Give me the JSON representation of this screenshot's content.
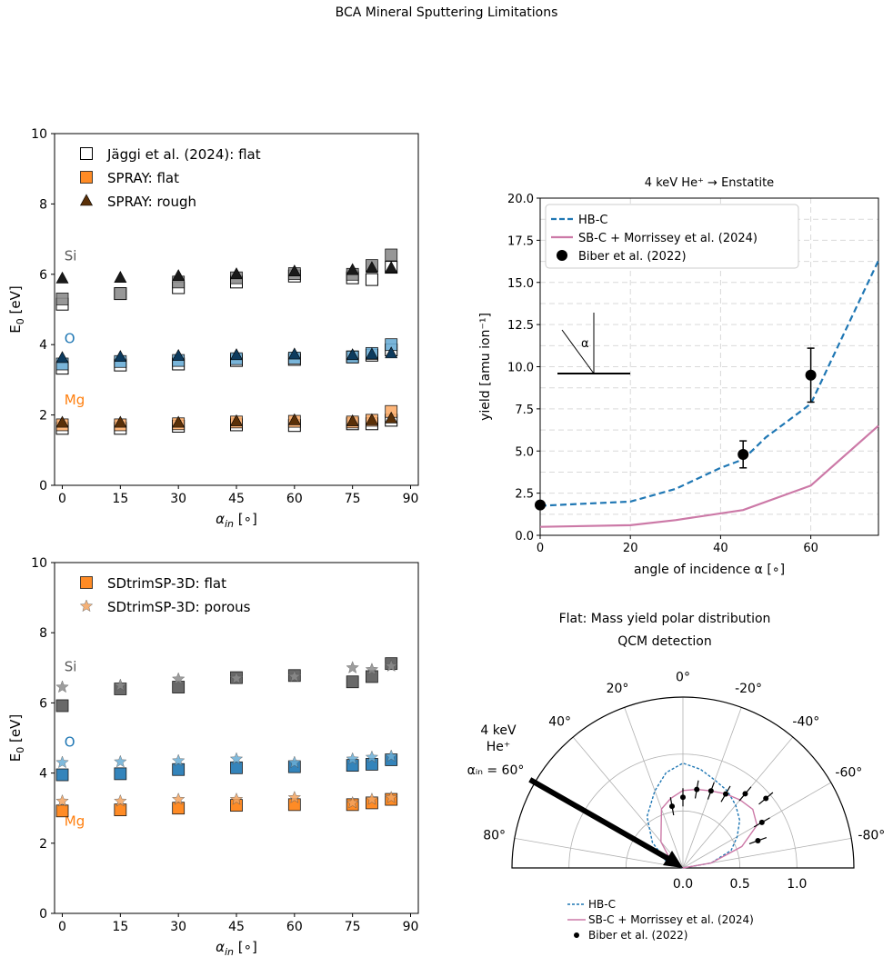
{
  "page_header": "BCA Mineral Sputtering Limitations",
  "colors": {
    "si": "#595959",
    "o": "#1f77b4",
    "mg": "#ff7f0e",
    "hbc": "#1f77b4",
    "sbc": "#cc79a7",
    "black": "#000000"
  },
  "chart_data": [
    {
      "type": "scatter",
      "panel": "top-left",
      "xlabel": "α_in [∘]",
      "ylabel": "E₀ [eV]",
      "xlim": [
        -2,
        92
      ],
      "ylim": [
        0,
        10
      ],
      "xticks": [
        0,
        15,
        30,
        45,
        60,
        75,
        90
      ],
      "yticks": [
        0,
        2,
        4,
        6,
        8,
        10
      ],
      "grid": false,
      "legend_position": "top-left",
      "legend": [
        "Jäggi et al. (2024): flat",
        "SPRAY: flat",
        "SPRAY: rough"
      ],
      "group_labels": [
        {
          "text": "Si",
          "x": 1,
          "y": 6.4,
          "color": "#595959"
        },
        {
          "text": "O",
          "x": 1,
          "y": 4.05,
          "color": "#1f77b4"
        },
        {
          "text": "Mg",
          "x": 1,
          "y": 2.3,
          "color": "#ff7f0e"
        }
      ],
      "series": [
        {
          "name": "Jäggi et al. (2024): flat",
          "marker": "square-open",
          "color": "#000000",
          "points": [
            [
              0,
              5.15
            ],
            [
              15,
              5.45
            ],
            [
              30,
              5.62
            ],
            [
              45,
              5.78
            ],
            [
              60,
              5.95
            ],
            [
              75,
              5.9
            ],
            [
              80,
              5.85
            ],
            [
              85,
              6.2
            ],
            [
              0,
              3.33
            ],
            [
              15,
              3.42
            ],
            [
              30,
              3.45
            ],
            [
              45,
              3.55
            ],
            [
              60,
              3.58
            ],
            [
              75,
              3.65
            ],
            [
              80,
              3.7
            ],
            [
              85,
              3.85
            ],
            [
              0,
              1.62
            ],
            [
              15,
              1.62
            ],
            [
              30,
              1.68
            ],
            [
              45,
              1.72
            ],
            [
              60,
              1.7
            ],
            [
              75,
              1.75
            ],
            [
              80,
              1.75
            ],
            [
              85,
              1.85
            ]
          ]
        },
        {
          "name": "SPRAY: flat",
          "marker": "square",
          "color": "#ff7f0e",
          "points": [
            [
              0,
              5.3
            ],
            [
              15,
              5.45
            ],
            [
              30,
              5.78
            ],
            [
              45,
              5.9
            ],
            [
              60,
              6.02
            ],
            [
              75,
              6.0
            ],
            [
              80,
              6.25
            ],
            [
              85,
              6.55
            ],
            [
              0,
              3.45
            ],
            [
              15,
              3.52
            ],
            [
              30,
              3.55
            ],
            [
              45,
              3.6
            ],
            [
              60,
              3.62
            ],
            [
              75,
              3.65
            ],
            [
              80,
              3.75
            ],
            [
              85,
              4.0
            ],
            [
              0,
              1.72
            ],
            [
              15,
              1.72
            ],
            [
              30,
              1.75
            ],
            [
              45,
              1.8
            ],
            [
              60,
              1.82
            ],
            [
              75,
              1.8
            ],
            [
              80,
              1.85
            ],
            [
              85,
              2.1
            ]
          ],
          "group_colors": [
            "#8c8c8c",
            "#6baed6",
            "#fdae6b"
          ]
        },
        {
          "name": "SPRAY: rough",
          "marker": "triangle",
          "color": "#5a3008",
          "points": [
            [
              0,
              5.88
            ],
            [
              15,
              5.9
            ],
            [
              30,
              5.95
            ],
            [
              45,
              6.0
            ],
            [
              60,
              6.08
            ],
            [
              75,
              6.12
            ],
            [
              80,
              6.18
            ],
            [
              85,
              6.18
            ],
            [
              0,
              3.62
            ],
            [
              15,
              3.65
            ],
            [
              30,
              3.68
            ],
            [
              45,
              3.7
            ],
            [
              60,
              3.72
            ],
            [
              75,
              3.7
            ],
            [
              80,
              3.72
            ],
            [
              85,
              3.75
            ],
            [
              0,
              1.78
            ],
            [
              15,
              1.78
            ],
            [
              30,
              1.78
            ],
            [
              45,
              1.82
            ],
            [
              60,
              1.85
            ],
            [
              75,
              1.82
            ],
            [
              80,
              1.85
            ],
            [
              85,
              1.9
            ]
          ],
          "group_colors": [
            "#1a1a1a",
            "#0d3b5e",
            "#5a3008"
          ]
        }
      ]
    },
    {
      "type": "scatter",
      "panel": "bottom-left",
      "xlabel": "α_in [∘]",
      "ylabel": "E₀ [eV]",
      "xlim": [
        -2,
        92
      ],
      "ylim": [
        0,
        10
      ],
      "xticks": [
        0,
        15,
        30,
        45,
        60,
        75,
        90
      ],
      "yticks": [
        0,
        2,
        4,
        6,
        8,
        10
      ],
      "grid": false,
      "legend_position": "top-left",
      "legend": [
        "SDtrimSP-3D: flat",
        "SDtrimSP-3D: porous"
      ],
      "group_labels": [
        {
          "text": "Si",
          "x": 1,
          "y": 6.9,
          "color": "#595959"
        },
        {
          "text": "O",
          "x": 1,
          "y": 4.75,
          "color": "#1f77b4"
        },
        {
          "text": "Mg",
          "x": 1,
          "y": 2.5,
          "color": "#ff7f0e"
        }
      ],
      "series": [
        {
          "name": "SDtrimSP-3D: flat",
          "marker": "square",
          "color": "#ff7f0e",
          "points": [
            [
              0,
              5.92
            ],
            [
              15,
              6.4
            ],
            [
              30,
              6.45
            ],
            [
              45,
              6.72
            ],
            [
              60,
              6.78
            ],
            [
              75,
              6.6
            ],
            [
              80,
              6.75
            ],
            [
              85,
              7.12
            ],
            [
              0,
              3.95
            ],
            [
              15,
              3.98
            ],
            [
              30,
              4.1
            ],
            [
              45,
              4.15
            ],
            [
              60,
              4.18
            ],
            [
              75,
              4.22
            ],
            [
              80,
              4.25
            ],
            [
              85,
              4.38
            ],
            [
              0,
              2.92
            ],
            [
              15,
              2.95
            ],
            [
              30,
              3.0
            ],
            [
              45,
              3.08
            ],
            [
              60,
              3.1
            ],
            [
              75,
              3.1
            ],
            [
              80,
              3.15
            ],
            [
              85,
              3.25
            ]
          ],
          "group_colors": [
            "#595959",
            "#1f77b4",
            "#ff7f0e"
          ]
        },
        {
          "name": "SDtrimSP-3D: porous",
          "marker": "star",
          "color": "#f4a460",
          "points": [
            [
              0,
              6.45
            ],
            [
              15,
              6.5
            ],
            [
              30,
              6.68
            ],
            [
              45,
              6.7
            ],
            [
              60,
              6.75
            ],
            [
              75,
              7.0
            ],
            [
              80,
              6.95
            ],
            [
              85,
              7.05
            ],
            [
              0,
              4.3
            ],
            [
              15,
              4.32
            ],
            [
              30,
              4.35
            ],
            [
              45,
              4.4
            ],
            [
              60,
              4.3
            ],
            [
              75,
              4.4
            ],
            [
              80,
              4.45
            ],
            [
              85,
              4.48
            ],
            [
              0,
              3.2
            ],
            [
              15,
              3.2
            ],
            [
              30,
              3.25
            ],
            [
              45,
              3.25
            ],
            [
              60,
              3.3
            ],
            [
              75,
              3.15
            ],
            [
              80,
              3.25
            ],
            [
              85,
              3.3
            ]
          ],
          "group_colors": [
            "#8c8c8c",
            "#6baed6",
            "#f4a460"
          ]
        }
      ]
    },
    {
      "type": "line",
      "panel": "top-right",
      "title": "4 keV He⁺ → Enstatite",
      "xlabel": "angle of incidence α [∘]",
      "ylabel": "yield [amu ion⁻¹]",
      "xlim": [
        0,
        75
      ],
      "ylim": [
        0,
        20
      ],
      "xticks": [
        0,
        20,
        40,
        60
      ],
      "yticks": [
        0.0,
        2.5,
        5.0,
        7.5,
        10.0,
        12.5,
        15.0,
        17.5,
        20.0
      ],
      "grid": true,
      "legend_position": "top-left",
      "inset_label": "α",
      "series": [
        {
          "name": "HB-C",
          "style": "dashed",
          "color": "#1f77b4",
          "x": [
            0,
            20,
            30,
            40,
            45,
            50,
            60,
            75
          ],
          "y": [
            1.75,
            2.0,
            2.75,
            4.0,
            4.5,
            5.8,
            7.8,
            16.3
          ]
        },
        {
          "name": "SB-C + Morrissey et al. (2024)",
          "style": "solid",
          "color": "#cc79a7",
          "x": [
            0,
            20,
            30,
            45,
            60,
            75
          ],
          "y": [
            0.5,
            0.6,
            0.9,
            1.5,
            2.95,
            6.5
          ]
        },
        {
          "name": "Biber et al. (2022)",
          "style": "errorbar",
          "color": "#000000",
          "x": [
            0,
            45,
            60
          ],
          "y": [
            1.8,
            4.8,
            9.5
          ],
          "yerr": [
            0.0,
            0.8,
            1.6
          ]
        }
      ]
    },
    {
      "type": "polar",
      "panel": "bottom-right",
      "title": "Flat: Mass yield polar distribution",
      "subtitle": "QCM detection",
      "angle_ticks": [
        "0°",
        "-20°",
        "-40°",
        "-60°",
        "-80°",
        "20°",
        "40°",
        "80°"
      ],
      "radial_ticks": [
        "0.0",
        "0.5",
        "1.0"
      ],
      "rlim": [
        0,
        1.5
      ],
      "incidence_label": [
        "4 keV",
        "He⁺",
        "αᵢₙ = 60°"
      ],
      "incidence_angle_deg": 60,
      "legend": [
        "HB-C",
        "SB-C + Morrissey et al. (2024)",
        "Biber et al. (2022)"
      ],
      "series": [
        {
          "name": "HB-C",
          "style": "dashed",
          "color": "#1f77b4",
          "angle_deg": [
            90,
            70,
            50,
            35,
            20,
            10,
            0,
            -10,
            -20,
            -30,
            -40,
            -50,
            -60,
            -70,
            -80,
            -90
          ],
          "r": [
            0,
            0.15,
            0.35,
            0.55,
            0.72,
            0.85,
            0.92,
            0.88,
            0.82,
            0.78,
            0.72,
            0.65,
            0.55,
            0.45,
            0.25,
            0
          ]
        },
        {
          "name": "SB-C + Morrissey et al. (2024)",
          "style": "solid",
          "color": "#cc79a7",
          "angle_deg": [
            90,
            60,
            40,
            20,
            10,
            0,
            -10,
            -20,
            -30,
            -40,
            -50,
            -60,
            -70,
            -80,
            -90
          ],
          "r": [
            0,
            0.12,
            0.3,
            0.55,
            0.62,
            0.68,
            0.7,
            0.72,
            0.75,
            0.78,
            0.8,
            0.75,
            0.55,
            0.25,
            0
          ]
        },
        {
          "name": "Biber et al. (2022)",
          "style": "errorbar",
          "color": "#000000",
          "angle_deg": [
            10,
            0,
            -10,
            -20,
            -30,
            -40,
            -50,
            -60,
            -70
          ],
          "r": [
            0.55,
            0.62,
            0.7,
            0.72,
            0.75,
            0.85,
            0.95,
            0.8,
            0.7
          ]
        }
      ]
    }
  ]
}
